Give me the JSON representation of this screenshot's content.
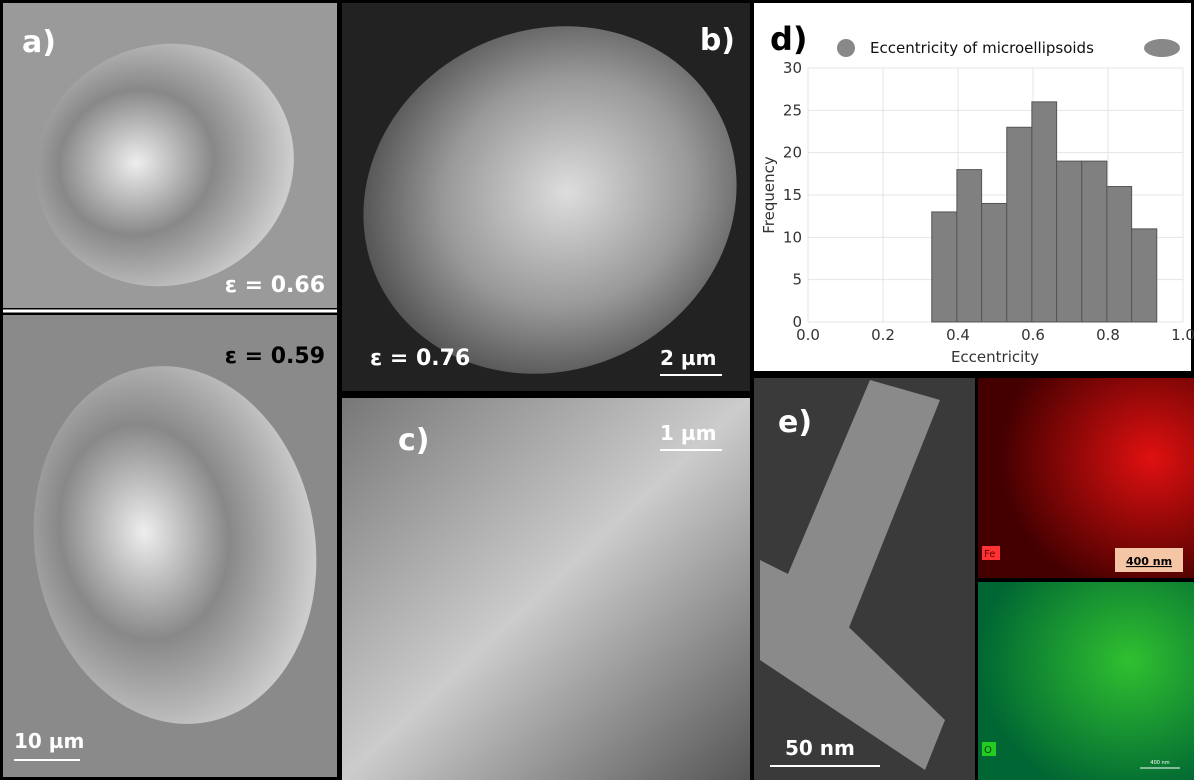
{
  "panels": {
    "a": {
      "label": "a)",
      "top_eccentricity": "ε = 0.66",
      "bottom_eccentricity": "ε = 0.59",
      "scale_bar": "10 µm"
    },
    "b": {
      "label": "b)",
      "eccentricity": "ε  = 0.76",
      "scale_bar": "2 µm"
    },
    "c": {
      "label": "c)",
      "scale_bar": "1 µm"
    },
    "d": {
      "label": "d)"
    },
    "e": {
      "label": "e)",
      "scale_bar": "50 nm",
      "fe_label": "Fe",
      "fe_scale_bar": "400 nm",
      "o_label": "O",
      "o_scale_bar": "400 nm"
    }
  },
  "chart_data": {
    "type": "histogram",
    "legend_title": "Eccentricity of microellipsoids",
    "x_label": "Eccentricity",
    "y_label": "Frequency",
    "bins": [
      0.33,
      0.397,
      0.463,
      0.53,
      0.597,
      0.663,
      0.73,
      0.797,
      0.863,
      0.93
    ],
    "values": [
      13,
      18,
      14,
      23,
      26,
      19,
      19,
      16,
      11
    ],
    "color": "#808080",
    "xlim": [
      0,
      1
    ],
    "xticks": [
      {
        "value": 0,
        "label": "0.0"
      },
      0.2,
      0.4,
      0.6,
      0.8,
      {
        "value": 1,
        "label": "1.0"
      }
    ],
    "ylim": [
      0,
      30
    ],
    "yticks": [
      0,
      5,
      10,
      15,
      20,
      25,
      30
    ],
    "grid": true
  }
}
